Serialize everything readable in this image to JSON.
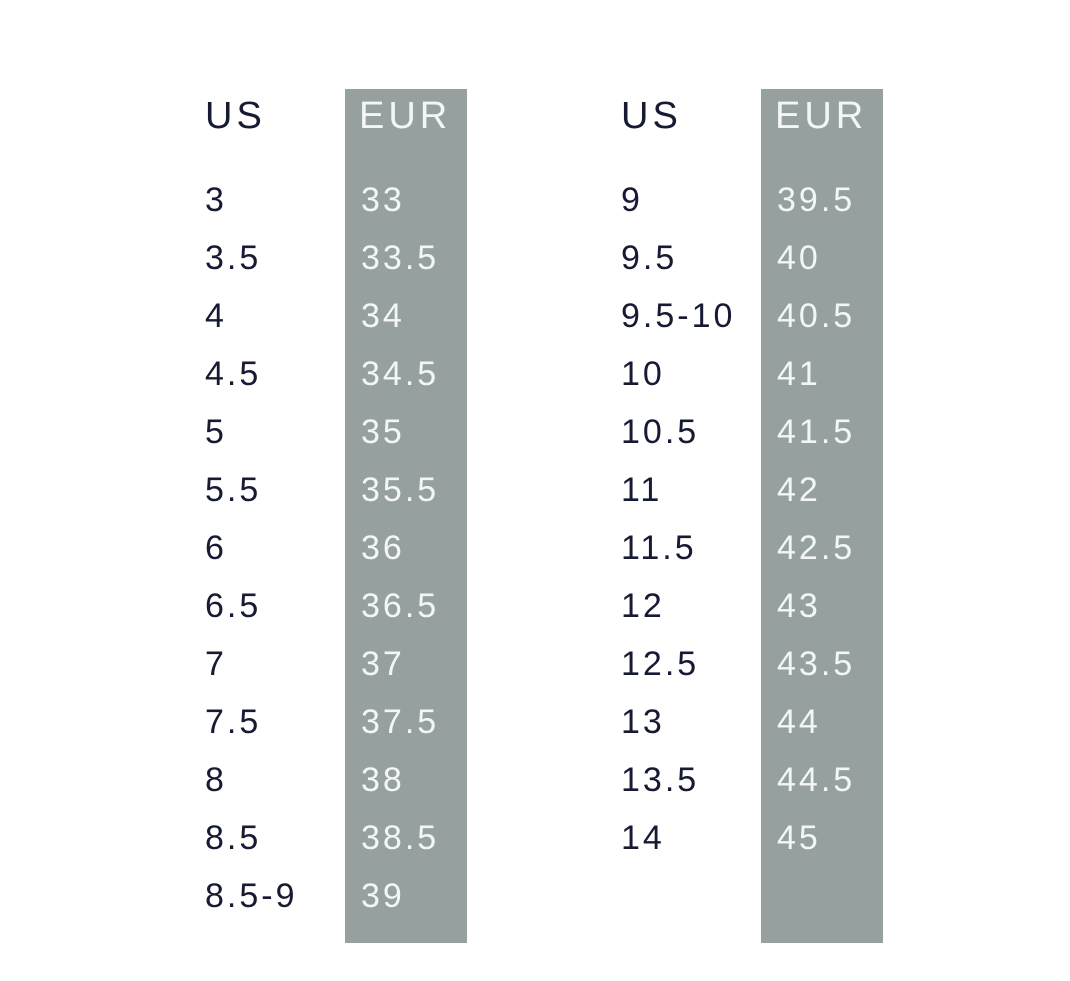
{
  "tables": [
    {
      "header": [
        "US",
        "EUR"
      ],
      "rows": [
        [
          "3",
          "33"
        ],
        [
          "3.5",
          "33.5"
        ],
        [
          "4",
          "34"
        ],
        [
          "4.5",
          "34.5"
        ],
        [
          "5",
          "35"
        ],
        [
          "5.5",
          "35.5"
        ],
        [
          "6",
          "36"
        ],
        [
          "6.5",
          "36.5"
        ],
        [
          "7",
          "37"
        ],
        [
          "7.5",
          "37.5"
        ],
        [
          "8",
          "38"
        ],
        [
          "8.5",
          "38.5"
        ],
        [
          "8.5-9",
          "39"
        ]
      ]
    },
    {
      "header": [
        "US",
        "EUR"
      ],
      "rows": [
        [
          "9",
          "39.5"
        ],
        [
          "9.5",
          "40"
        ],
        [
          "9.5-10",
          "40.5"
        ],
        [
          "10",
          "41"
        ],
        [
          "10.5",
          "41.5"
        ],
        [
          "11",
          "42"
        ],
        [
          "11.5",
          "42.5"
        ],
        [
          "12",
          "43"
        ],
        [
          "12.5",
          "43.5"
        ],
        [
          "13",
          "44"
        ],
        [
          "13.5",
          "44.5"
        ],
        [
          "14",
          "45"
        ]
      ]
    }
  ]
}
